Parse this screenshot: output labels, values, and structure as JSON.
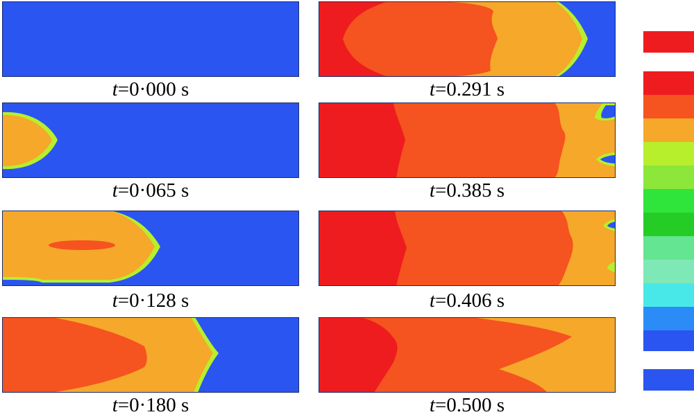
{
  "panels": [
    {
      "id": "p1",
      "var": "t",
      "value": "=0·000 s"
    },
    {
      "id": "p2",
      "var": "t",
      "value": "=0·065 s"
    },
    {
      "id": "p3",
      "var": "t",
      "value": "=0·128 s"
    },
    {
      "id": "p4",
      "var": "t",
      "value": "=0·180 s"
    },
    {
      "id": "p5",
      "var": "t",
      "value": "=0.291 s"
    },
    {
      "id": "p6",
      "var": "t",
      "value": "=0.385 s"
    },
    {
      "id": "p7",
      "var": "t",
      "value": "=0.406 s"
    },
    {
      "id": "p8",
      "var": "t",
      "value": "=0.500 s"
    }
  ],
  "colors": {
    "blue": "#2b55f0",
    "orange": "#f5a82a",
    "redorange": "#f5531f",
    "red": "#ee1c1f",
    "green": "#2fe43a",
    "ltgreen": "#b7ef2c",
    "frame": "#1a2a70"
  },
  "legend_swatches": [
    "#ee1c1f",
    "#f5531f",
    "#f5a82a",
    "#b7ef2c",
    "#8de63a",
    "#2fe43a",
    "#26cc26",
    "#64e592",
    "#7fe8b7",
    "#49e8e8",
    "#2b8cf7",
    "#2b55f0"
  ]
}
